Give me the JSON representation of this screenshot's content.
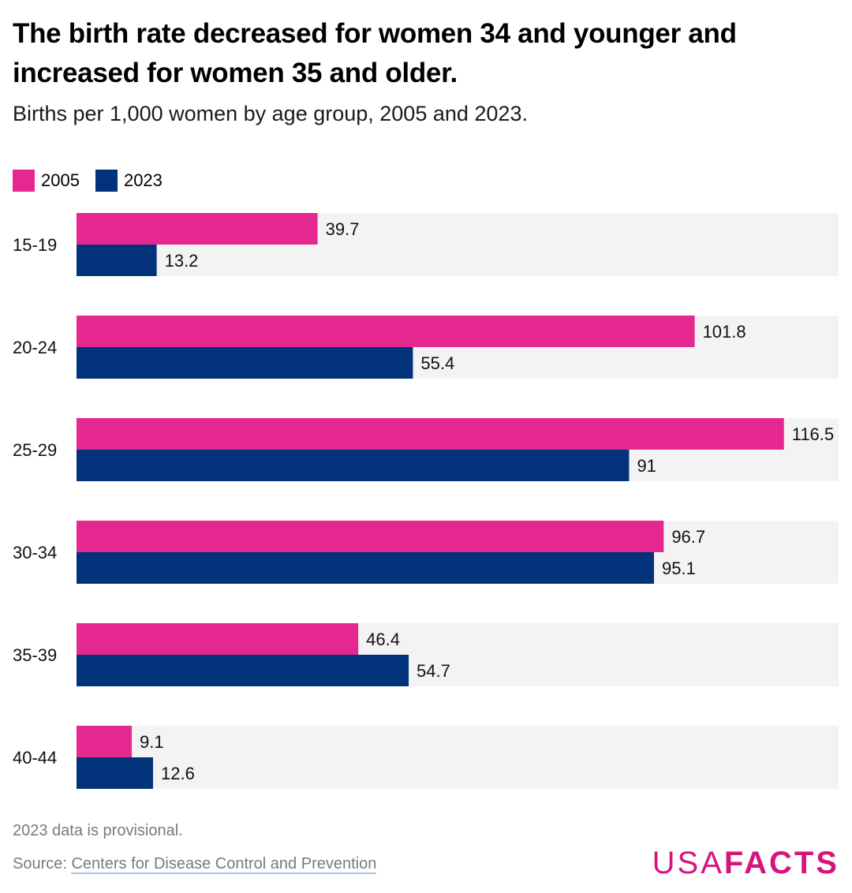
{
  "header": {
    "title": "The birth rate decreased for women 34 and younger and increased for women 35 and older.",
    "subtitle": "Births per 1,000 women by age group, 2005 and 2023."
  },
  "legend": [
    {
      "label": "2005",
      "color": "#e5288f"
    },
    {
      "label": "2023",
      "color": "#02337a"
    }
  ],
  "colors": {
    "track": "#f3f3f3",
    "series_2005": "#e5288f",
    "series_2023": "#02337a",
    "brand": "#d6157c"
  },
  "chart_data": {
    "type": "bar",
    "orientation": "horizontal",
    "title": "The birth rate decreased for women 34 and younger and increased for women 35 and older.",
    "subtitle": "Births per 1,000 women by age group, 2005 and 2023.",
    "categories": [
      "15-19",
      "20-24",
      "25-29",
      "30-34",
      "35-39",
      "40-44"
    ],
    "series": [
      {
        "name": "2005",
        "values": [
          39.7,
          101.8,
          116.5,
          96.7,
          46.4,
          9.1
        ],
        "labels": [
          "39.7",
          "101.8",
          "116.5",
          "96.7",
          "46.4",
          "9.1"
        ]
      },
      {
        "name": "2023",
        "values": [
          13.2,
          55.4,
          91,
          95.1,
          54.7,
          12.6
        ],
        "labels": [
          "13.2",
          "55.4",
          "91",
          "95.1",
          "54.7",
          "12.6"
        ]
      }
    ],
    "xlim": [
      0,
      125.5
    ],
    "grid": false,
    "legend_position": "top-left"
  },
  "footer": {
    "note": "2023 data is provisional.",
    "source_prefix": "Source: ",
    "source_link": "Centers for Disease Control and Prevention",
    "logo_usa": "USA",
    "logo_facts": "FACTS"
  }
}
